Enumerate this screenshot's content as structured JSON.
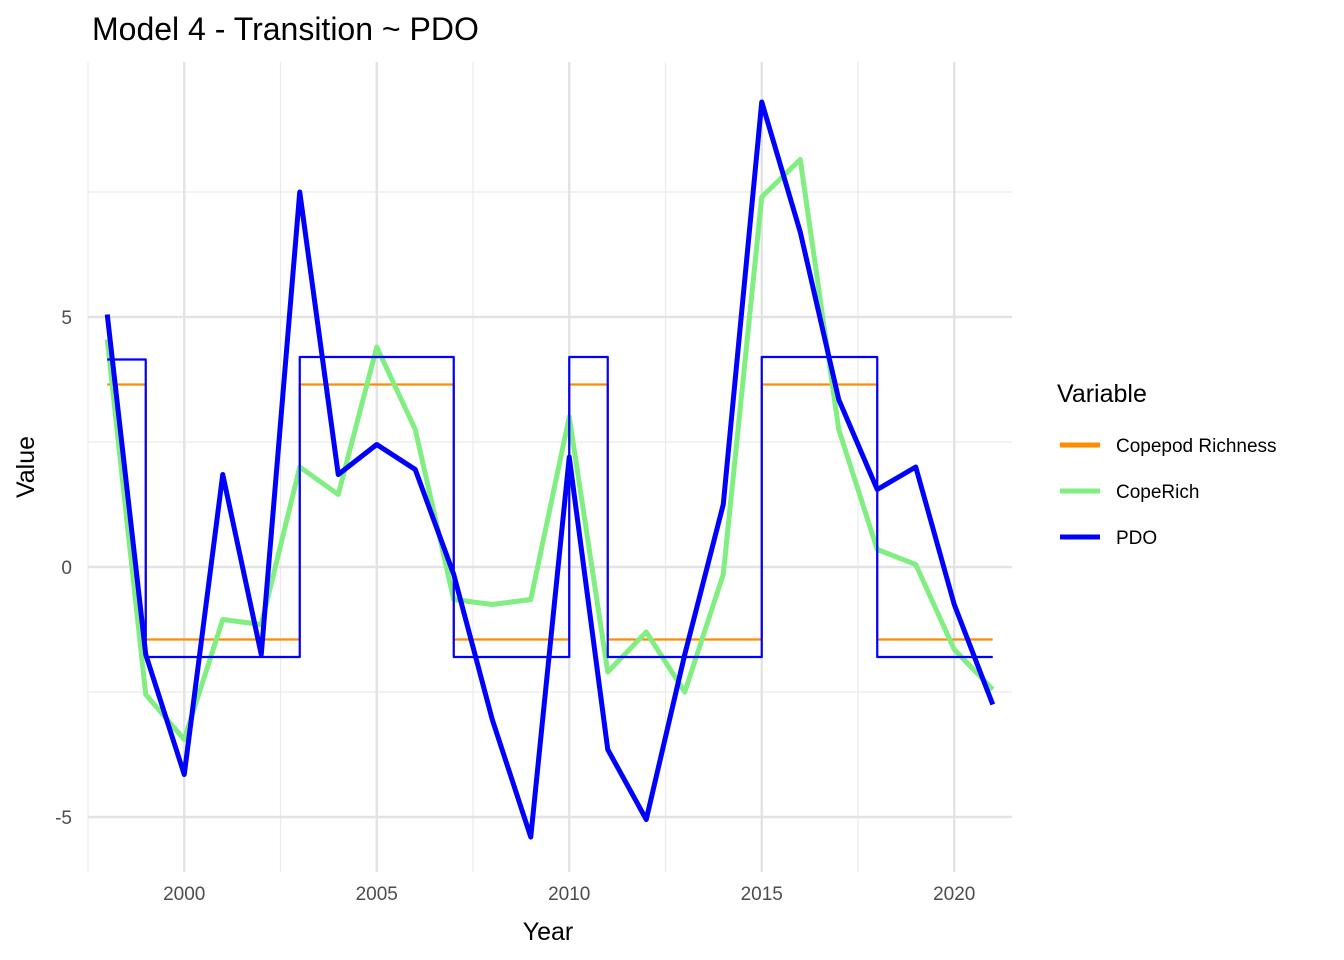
{
  "chart_data": {
    "type": "line",
    "title": "Model 4 - Transition ~ PDO",
    "xlabel": "Year",
    "ylabel": "Value",
    "xlim": [
      1997.5,
      2021.5
    ],
    "ylim": [
      -6.1,
      10.1
    ],
    "x_ticks": [
      2000,
      2005,
      2010,
      2015,
      2020
    ],
    "x_tick_labels": [
      "2000",
      "2005",
      "2010",
      "2015",
      "2020"
    ],
    "y_ticks": [
      -5,
      0,
      5
    ],
    "y_tick_labels": [
      "-5",
      "0",
      "5"
    ],
    "x_minor_grid": [
      1997.5,
      2002.5,
      2007.5,
      2012.5,
      2017.5
    ],
    "y_minor_grid": [
      -2.5,
      2.5,
      7.5
    ],
    "grid": true,
    "legend_title": "Variable",
    "legend_position": "right",
    "x": [
      1998,
      1999,
      2000,
      2001,
      2002,
      2003,
      2004,
      2005,
      2006,
      2007,
      2008,
      2009,
      2010,
      2011,
      2012,
      2013,
      2014,
      2015,
      2016,
      2017,
      2018,
      2019,
      2020,
      2021
    ],
    "series": [
      {
        "name": "Copepod Richness",
        "color": "#ff8c00",
        "style": "step",
        "width": 2.2,
        "values": [
          3.65,
          -1.45,
          -1.45,
          -1.45,
          -1.45,
          3.65,
          3.65,
          3.65,
          3.65,
          -1.45,
          -1.45,
          -1.45,
          3.65,
          -1.45,
          -1.45,
          -1.45,
          -1.45,
          3.65,
          3.65,
          3.65,
          -1.45,
          -1.45,
          -1.45,
          -1.45
        ]
      },
      {
        "name": "CopeRich",
        "color": "#80ee80",
        "style": "line",
        "width": 5,
        "values": [
          4.55,
          -2.55,
          -3.45,
          -1.05,
          -1.15,
          2.0,
          1.45,
          4.4,
          2.75,
          -0.65,
          -0.75,
          -0.65,
          3.0,
          -2.1,
          -1.3,
          -2.5,
          -0.15,
          7.4,
          8.15,
          2.75,
          0.35,
          0.05,
          -1.65,
          -2.45
        ]
      },
      {
        "name": "PDO",
        "color": "#0000ff",
        "style": "line",
        "width": 5,
        "values": [
          5.05,
          -1.75,
          -4.15,
          1.85,
          -1.75,
          7.5,
          1.85,
          2.45,
          1.95,
          -0.15,
          -3.05,
          -5.4,
          2.2,
          -3.65,
          -5.05,
          -1.75,
          1.25,
          9.3,
          6.7,
          3.35,
          1.55,
          2.0,
          -0.75,
          -2.75
        ]
      },
      {
        "name": "PDO",
        "color": "#0000ff",
        "style": "step",
        "width": 2.2,
        "in_legend": false,
        "values": [
          4.15,
          -1.8,
          -1.8,
          -1.8,
          -1.8,
          4.2,
          4.2,
          4.2,
          4.2,
          -1.8,
          -1.8,
          -1.8,
          4.2,
          -1.8,
          -1.8,
          -1.8,
          -1.8,
          4.2,
          4.2,
          4.2,
          -1.8,
          -1.8,
          -1.8,
          -1.8
        ]
      }
    ]
  }
}
